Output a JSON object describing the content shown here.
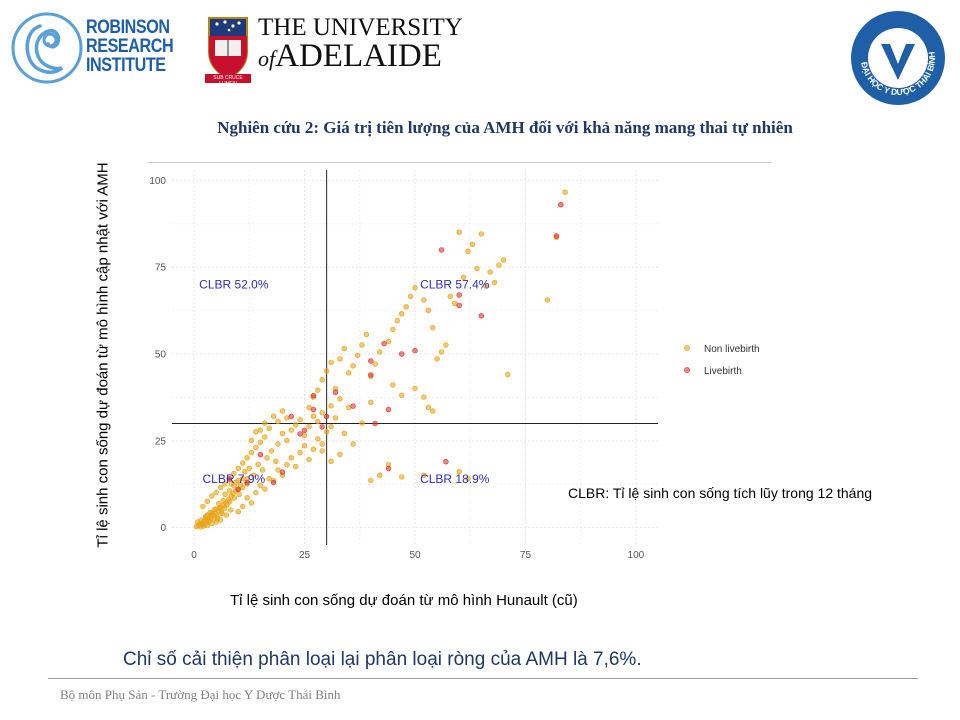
{
  "logos": {
    "rri": [
      "ROBINSON",
      "RESEARCH",
      "INSTITUTE"
    ],
    "uoa_line1": "THE UNIVERSITY",
    "uoa_of": "of",
    "uoa_line2": "ADELAIDE",
    "uoa_motto": "SUB CRUCE LUMEN",
    "tb_ring_text": "ĐẠI HỌC Y DƯỢC THÁI BÌNH"
  },
  "slide": {
    "title": "Nghiên cứu 2: Giá trị tiên lượng của AMH đối với khả năng mang thai tự nhiên",
    "y_axis_label": "Tỉ lệ sinh con sống dự đoán từ mô hình cập nhật với AMH",
    "x_axis_label": "Tỉ lệ sinh con sống dự đoán từ mô hình Hunault (cũ)",
    "clbr_definition": "CLBR: Tỉ lệ sinh con sống tích lũy trong 12 tháng",
    "conclusion": "Chỉ số cải thiện phân loại lại phân loại ròng của AMH là 7,6%.",
    "footer": "Bộ môn Phụ Sản - Trường Đại học Y Dược Thái Bình"
  },
  "colors": {
    "title": "#1f3864",
    "non_livebirth": "#e8a317",
    "livebirth": "#e0332e",
    "quadrant_label": "#2f2fb5"
  },
  "chart_data": {
    "type": "scatter",
    "xlim": [
      -5,
      105
    ],
    "ylim": [
      -5,
      103
    ],
    "x_ticks": [
      0,
      25,
      50,
      75,
      100
    ],
    "y_ticks": [
      0,
      25,
      50,
      75,
      100
    ],
    "grid": true,
    "legend_position": "right",
    "reference_lines": {
      "x": 30,
      "y": 30
    },
    "quadrant_labels": [
      {
        "text": "CLBR 52.0%",
        "x": 9,
        "y": 70
      },
      {
        "text": "CLBR 57.4%",
        "x": 59,
        "y": 70
      },
      {
        "text": "CLBR 7.9%",
        "x": 9,
        "y": 14
      },
      {
        "text": "CLBR 18.9%",
        "x": 59,
        "y": 14
      }
    ],
    "series": [
      {
        "name": "Non livebirth",
        "points": [
          [
            0.5,
            0.3
          ],
          [
            1,
            0.6
          ],
          [
            1.3,
            1
          ],
          [
            1.8,
            1.3
          ],
          [
            2,
            0.9
          ],
          [
            2.4,
            1.7
          ],
          [
            2.8,
            1.4
          ],
          [
            3.1,
            2.3
          ],
          [
            3.4,
            1.9
          ],
          [
            3.8,
            2.7
          ],
          [
            4.1,
            3.4
          ],
          [
            4.5,
            2.5
          ],
          [
            4.8,
            4
          ],
          [
            5.2,
            3.3
          ],
          [
            5.5,
            4.8
          ],
          [
            5.8,
            5.6
          ],
          [
            6.2,
            4.6
          ],
          [
            6.5,
            6.3
          ],
          [
            6.9,
            5.6
          ],
          [
            7.2,
            7.1
          ],
          [
            7.5,
            6.6
          ],
          [
            7.8,
            8.1
          ],
          [
            8.1,
            7.6
          ],
          [
            8.4,
            9.1
          ],
          [
            8.8,
            9.9
          ],
          [
            9.1,
            8.6
          ],
          [
            9.4,
            10.6
          ],
          [
            9.8,
            11.1
          ],
          [
            10.2,
            9.6
          ],
          [
            10.5,
            12.3
          ],
          [
            3,
            0.6
          ],
          [
            4,
            1.2
          ],
          [
            5,
            1.6
          ],
          [
            6,
            2.2
          ],
          [
            1.6,
            2.1
          ],
          [
            2.6,
            3.2
          ],
          [
            3.6,
            4.3
          ],
          [
            4.6,
            5.2
          ],
          [
            5.6,
            6.9
          ],
          [
            6.6,
            7.8
          ],
          [
            8.5,
            12.6
          ],
          [
            9.5,
            13.1
          ],
          [
            11,
            11.6
          ],
          [
            12,
            14.1
          ],
          [
            11.5,
            16.1
          ],
          [
            12.5,
            17.1
          ],
          [
            13.5,
            15.1
          ],
          [
            14.5,
            18.2
          ],
          [
            15.5,
            16.6
          ],
          [
            16.5,
            20.1
          ],
          [
            17.5,
            22.1
          ],
          [
            18.5,
            19.1
          ],
          [
            13,
            21.6
          ],
          [
            14,
            23.1
          ],
          [
            15,
            24.6
          ],
          [
            16,
            26.1
          ],
          [
            19,
            24.1
          ],
          [
            20,
            27.1
          ],
          [
            21,
            25.1
          ],
          [
            22,
            28.1
          ],
          [
            23,
            29.6
          ],
          [
            24,
            31.1
          ],
          [
            25,
            26.6
          ],
          [
            26,
            29.1
          ],
          [
            27,
            32.1
          ],
          [
            28,
            30.6
          ],
          [
            10,
            4.6
          ],
          [
            11,
            6.1
          ],
          [
            12,
            8.6
          ],
          [
            13,
            7.1
          ],
          [
            14,
            10.1
          ],
          [
            15,
            12.1
          ],
          [
            16,
            11.1
          ],
          [
            17,
            14.1
          ],
          [
            18,
            13.6
          ],
          [
            19,
            16.6
          ],
          [
            20,
            15.1
          ],
          [
            21,
            18.1
          ],
          [
            22,
            20.1
          ],
          [
            23,
            17.6
          ],
          [
            24,
            21.6
          ],
          [
            25,
            23.6
          ],
          [
            26,
            19.6
          ],
          [
            27,
            22.6
          ],
          [
            28,
            25.6
          ],
          [
            29,
            24.1
          ],
          [
            30,
            27.6
          ],
          [
            31,
            29.1
          ],
          [
            32,
            31.6
          ],
          [
            26,
            34.6
          ],
          [
            27,
            37.6
          ],
          [
            28,
            39.6
          ],
          [
            29,
            42.6
          ],
          [
            30,
            45.1
          ],
          [
            31,
            47.6
          ],
          [
            33,
            48.6
          ],
          [
            34,
            51.6
          ],
          [
            35,
            44.6
          ],
          [
            36,
            46.6
          ],
          [
            37,
            49.6
          ],
          [
            38,
            52.6
          ],
          [
            39,
            55.6
          ],
          [
            40,
            43.6
          ],
          [
            41,
            47.1
          ],
          [
            42,
            50.6
          ],
          [
            44,
            53.6
          ],
          [
            45,
            57.1
          ],
          [
            46,
            59.6
          ],
          [
            47,
            61.6
          ],
          [
            48,
            63.6
          ],
          [
            49,
            66.6
          ],
          [
            50,
            69.1
          ],
          [
            52,
            65.6
          ],
          [
            53,
            62.6
          ],
          [
            54,
            57.6
          ],
          [
            55,
            48.6
          ],
          [
            56,
            50.6
          ],
          [
            57,
            52.6
          ],
          [
            58,
            66.6
          ],
          [
            59,
            64.6
          ],
          [
            60,
            85.1
          ],
          [
            61,
            72.1
          ],
          [
            62,
            79.6
          ],
          [
            63,
            81.6
          ],
          [
            64,
            74.6
          ],
          [
            65,
            84.6
          ],
          [
            66,
            69.6
          ],
          [
            67,
            73.6
          ],
          [
            68,
            70.6
          ],
          [
            69,
            75.6
          ],
          [
            70,
            77.1
          ],
          [
            71,
            44.1
          ],
          [
            80,
            65.6
          ],
          [
            84,
            96.6
          ],
          [
            82,
            83.6
          ],
          [
            44,
            18.1
          ],
          [
            47,
            14.6
          ],
          [
            52,
            15.1
          ],
          [
            60,
            16.1
          ],
          [
            62,
            14.1
          ],
          [
            40,
            13.6
          ],
          [
            42,
            15.1
          ],
          [
            34,
            27.1
          ],
          [
            36,
            24.1
          ],
          [
            38,
            30.1
          ],
          [
            33,
            21.1
          ],
          [
            31,
            19.1
          ],
          [
            29,
            22.1
          ],
          [
            52,
            37.6
          ],
          [
            53,
            34.6
          ],
          [
            54,
            33.6
          ],
          [
            50,
            40.1
          ],
          [
            45,
            41.1
          ],
          [
            47,
            38.1
          ],
          [
            40,
            36.1
          ],
          [
            35,
            34.6
          ],
          [
            33,
            37.1
          ],
          [
            32,
            40.1
          ],
          [
            31,
            35.1
          ],
          [
            29,
            33.1
          ],
          [
            2,
            6.1
          ],
          [
            3,
            7.6
          ],
          [
            4,
            9.1
          ],
          [
            5,
            10.1
          ],
          [
            6,
            11.6
          ],
          [
            7,
            12.6
          ],
          [
            8,
            14.1
          ],
          [
            9,
            15.6
          ],
          [
            10,
            17.1
          ],
          [
            11,
            18.6
          ],
          [
            12,
            20.1
          ],
          [
            13,
            25.1
          ],
          [
            14,
            27.6
          ],
          [
            15,
            28.1
          ],
          [
            16,
            30.1
          ],
          [
            17,
            28.6
          ],
          [
            18,
            32.1
          ],
          [
            19,
            30.6
          ],
          [
            20,
            33.6
          ],
          [
            21,
            31.6
          ],
          [
            3,
            3.6
          ],
          [
            4,
            4.3
          ],
          [
            5,
            5.4
          ],
          [
            6,
            5.9
          ],
          [
            7,
            9.6
          ],
          [
            8,
            10.6
          ],
          [
            9,
            12.1
          ],
          [
            10,
            13.6
          ],
          [
            11,
            14.1
          ],
          [
            12,
            12.6
          ],
          [
            0.8,
            1.6
          ],
          [
            1.5,
            0.2
          ],
          [
            2.2,
            0.5
          ],
          [
            2.5,
            2.6
          ],
          [
            3.3,
            2.9
          ],
          [
            4.3,
            3.9
          ],
          [
            5.3,
            2.6
          ],
          [
            6.3,
            4.1
          ],
          [
            7.3,
            3.6
          ],
          [
            8.3,
            5.1
          ]
        ]
      },
      {
        "name": "Livebirth",
        "points": [
          [
            83,
            93
          ],
          [
            82,
            84
          ],
          [
            56,
            80
          ],
          [
            60,
            67
          ],
          [
            60,
            64
          ],
          [
            65,
            61
          ],
          [
            43,
            53
          ],
          [
            47,
            50
          ],
          [
            50,
            51
          ],
          [
            40,
            48
          ],
          [
            40,
            44
          ],
          [
            27,
            38
          ],
          [
            27,
            34
          ],
          [
            44,
            34
          ],
          [
            41,
            30
          ],
          [
            44,
            17
          ],
          [
            57,
            19
          ],
          [
            32,
            39
          ],
          [
            30,
            32
          ],
          [
            29,
            29
          ],
          [
            25,
            28
          ],
          [
            24,
            27
          ],
          [
            20,
            16
          ],
          [
            18,
            13
          ],
          [
            12,
            13
          ],
          [
            10,
            11
          ],
          [
            8,
            14
          ],
          [
            15,
            21
          ],
          [
            36,
            35
          ],
          [
            22,
            32
          ]
        ]
      }
    ]
  }
}
